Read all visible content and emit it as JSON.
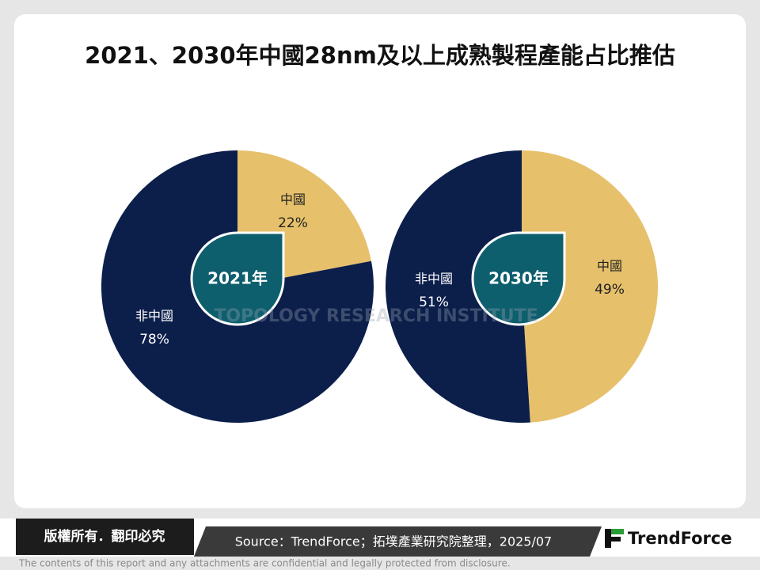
{
  "title": "2021、2030年中國28nm及以上成熟製程產能占比推估",
  "watermark": "TOPOLOGY RESEARCH INSTITUTE",
  "chart_data": [
    {
      "type": "pie",
      "center_label": "2021年",
      "categories": [
        "中國",
        "非中國"
      ],
      "values": [
        22,
        78
      ],
      "value_labels": [
        "22%",
        "78%"
      ],
      "colors": [
        "#e6c06b",
        "#0c1f4b"
      ]
    },
    {
      "type": "pie",
      "center_label": "2030年",
      "categories": [
        "中國",
        "非中國"
      ],
      "values": [
        49,
        51
      ],
      "value_labels": [
        "49%",
        "51%"
      ],
      "colors": [
        "#e6c06b",
        "#0c1f4b"
      ]
    }
  ],
  "footer": {
    "copyright": "版權所有．翻印必究",
    "source": "Source：TrendForce；拓墣產業研究院整理，2025/07",
    "brand": "TrendForce",
    "disclaimer": "The contents of this report and any attachments are confidential and legally protected from disclosure."
  }
}
